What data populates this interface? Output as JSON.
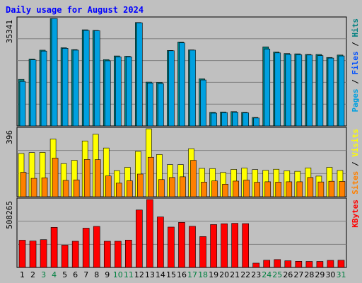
{
  "chart_data": {
    "type": "bar",
    "title": "Daily usage for August 2024",
    "x": [
      "1",
      "2",
      "3",
      "4",
      "5",
      "6",
      "7",
      "8",
      "9",
      "10",
      "11",
      "12",
      "13",
      "14",
      "15",
      "16",
      "17",
      "18",
      "19",
      "20",
      "21",
      "22",
      "23",
      "24",
      "25",
      "26",
      "27",
      "28",
      "29",
      "30",
      "31"
    ],
    "weekend_days": [
      "3",
      "4",
      "10",
      "11",
      "17",
      "18",
      "24",
      "25",
      "31"
    ],
    "colors": {
      "background": "#c0c0c0",
      "plot_bg": "#c0c0c0",
      "title": "#0000ff",
      "pages": "#00a0e0",
      "files": "#0050ff",
      "hits": "#008080",
      "sites": "#ff8000",
      "visits": "#ffff00",
      "kbytes": "#ff0000",
      "weekday_label": "#000000",
      "weekend_label": "#008040"
    },
    "panels": [
      {
        "id": "top",
        "max_label": "35341",
        "ymax": 35341,
        "legend": [
          {
            "text": "Pages",
            "color": "#00a0e0"
          },
          {
            "text": " / ",
            "color": "#000000"
          },
          {
            "text": "Files",
            "color": "#0050ff"
          },
          {
            "text": " / ",
            "color": "#000000"
          },
          {
            "text": "Hits",
            "color": "#008080"
          }
        ],
        "series": [
          {
            "name": "Hits",
            "values": [
              15300,
              22000,
              24900,
              35300,
              25700,
              25100,
              31600,
              31400,
              21800,
              23000,
              22900,
              34000,
              14400,
              14300,
              24800,
              27600,
              25000,
              15500,
              4500,
              4600,
              4700,
              4500,
              2800,
              26000,
              24300,
              23800,
              23700,
              23500,
              23500,
              22500,
              23300
            ]
          },
          {
            "name": "Pages",
            "values": [
              14600,
              21700,
              24600,
              35300,
              25500,
              24900,
              31400,
              31300,
              21400,
              22700,
              22700,
              33900,
              14100,
              13900,
              24700,
              27300,
              24900,
              15100,
              4200,
              4400,
              4500,
              4300,
              2600,
              25300,
              24000,
              23500,
              23400,
              23300,
              23100,
              22300,
              23000
            ]
          }
        ]
      },
      {
        "id": "middle",
        "max_label": "396",
        "ymax": 396,
        "legend": [
          {
            "text": "Sites",
            "color": "#ff8000"
          },
          {
            "text": " / ",
            "color": "#000000"
          },
          {
            "text": "Visits",
            "color": "#ffff00"
          }
        ],
        "series": [
          {
            "name": "Visits",
            "values": [
              252,
              257,
              258,
              336,
              193,
              212,
              325,
              364,
              284,
              152,
              171,
              264,
              396,
              246,
              187,
              187,
              280,
              165,
              164,
              141,
              159,
              167,
              158,
              154,
              160,
              151,
              148,
              168,
              120,
              171,
              153
            ]
          },
          {
            "name": "Sites",
            "values": [
              142,
              107,
              110,
              225,
              95,
              98,
              217,
              216,
              121,
              79,
              93,
              132,
              230,
              100,
              112,
              116,
              212,
              85,
              92,
              73,
              91,
              97,
              84,
              87,
              85,
              87,
              87,
              112,
              86,
              90,
              89
            ]
          }
        ]
      },
      {
        "id": "bottom",
        "max_label": "508265",
        "ymax": 508265,
        "legend": [
          {
            "text": "KBytes",
            "color": "#ff0000"
          }
        ],
        "series": [
          {
            "name": "KBytes",
            "values": [
              204000,
              198000,
              208000,
              300000,
              167000,
              196000,
              294000,
              307000,
              196000,
              196000,
              205000,
              430000,
              508265,
              378000,
              302000,
              337000,
              308000,
              231000,
              321000,
              327000,
              330000,
              328000,
              32000,
              54000,
              59000,
              50000,
              46000,
              45000,
              45000,
              53000,
              54000
            ]
          }
        ]
      }
    ]
  }
}
